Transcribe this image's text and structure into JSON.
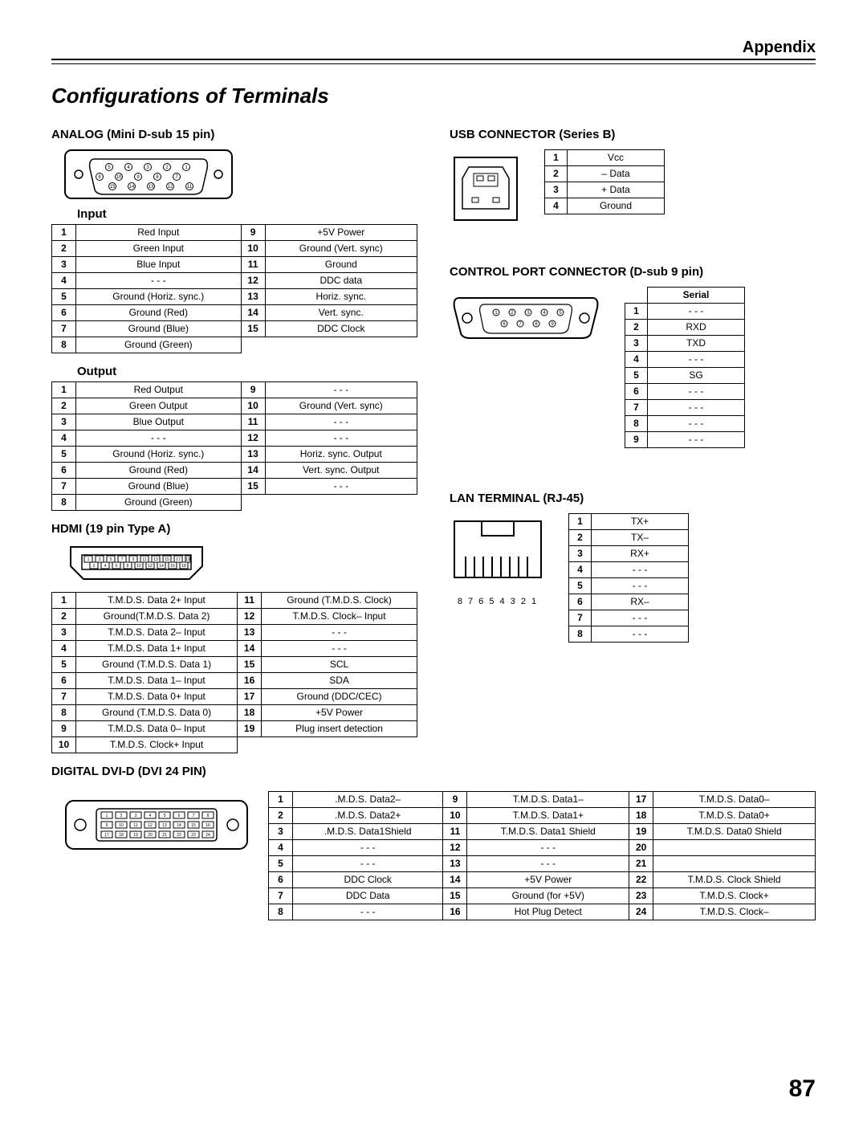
{
  "header": {
    "appendix": "Appendix"
  },
  "title": "Configurations of Terminals",
  "page_number": "87",
  "analog": {
    "heading": "ANALOG (Mini D-sub 15 pin)",
    "input_heading": "Input",
    "output_heading": "Output",
    "input": [
      [
        "1",
        "Red Input",
        "9",
        "+5V Power"
      ],
      [
        "2",
        "Green Input",
        "10",
        "Ground (Vert. sync)"
      ],
      [
        "3",
        "Blue Input",
        "11",
        "Ground"
      ],
      [
        "4",
        "- - -",
        "12",
        "DDC data"
      ],
      [
        "5",
        "Ground (Horiz. sync.)",
        "13",
        "Horiz. sync."
      ],
      [
        "6",
        "Ground (Red)",
        "14",
        "Vert. sync."
      ],
      [
        "7",
        "Ground (Blue)",
        "15",
        "DDC Clock"
      ],
      [
        "8",
        "Ground (Green)",
        "",
        ""
      ]
    ],
    "output": [
      [
        "1",
        "Red Output",
        "9",
        "- - -"
      ],
      [
        "2",
        "Green Output",
        "10",
        "Ground (Vert. sync)"
      ],
      [
        "3",
        "Blue Output",
        "11",
        "- - -"
      ],
      [
        "4",
        "- - -",
        "12",
        "- - -"
      ],
      [
        "5",
        "Ground (Horiz. sync.)",
        "13",
        "Horiz. sync. Output"
      ],
      [
        "6",
        "Ground (Red)",
        "14",
        "Vert. sync. Output"
      ],
      [
        "7",
        "Ground (Blue)",
        "15",
        "- - -"
      ],
      [
        "8",
        "Ground (Green)",
        "",
        ""
      ]
    ]
  },
  "hdmi": {
    "heading": "HDMI (19 pin Type A)",
    "rows": [
      [
        "1",
        "T.M.D.S. Data 2+ Input",
        "11",
        "Ground (T.M.D.S. Clock)"
      ],
      [
        "2",
        "Ground(T.M.D.S. Data 2)",
        "12",
        "T.M.D.S. Clock– Input"
      ],
      [
        "3",
        "T.M.D.S. Data 2– Input",
        "13",
        "- - -"
      ],
      [
        "4",
        "T.M.D.S. Data 1+ Input",
        "14",
        "- - -"
      ],
      [
        "5",
        "Ground (T.M.D.S. Data 1)",
        "15",
        "SCL"
      ],
      [
        "6",
        "T.M.D.S. Data 1– Input",
        "16",
        "SDA"
      ],
      [
        "7",
        "T.M.D.S. Data 0+ Input",
        "17",
        "Ground (DDC/CEC)"
      ],
      [
        "8",
        "Ground (T.M.D.S. Data 0)",
        "18",
        "+5V Power"
      ],
      [
        "9",
        "T.M.D.S. Data 0– Input",
        "19",
        "Plug insert detection"
      ],
      [
        "10",
        "T.M.D.S. Clock+ Input",
        "",
        ""
      ]
    ]
  },
  "dvi": {
    "heading": "DIGITAL DVI-D (DVI 24 PIN)",
    "rows": [
      [
        "1",
        ".M.D.S. Data2–",
        "9",
        "T.M.D.S. Data1–",
        "17",
        "T.M.D.S. Data0–"
      ],
      [
        "2",
        ".M.D.S. Data2+",
        "10",
        "T.M.D.S. Data1+",
        "18",
        "T.M.D.S. Data0+"
      ],
      [
        "3",
        ".M.D.S. Data1Shield",
        "11",
        "T.M.D.S. Data1 Shield",
        "19",
        "T.M.D.S. Data0 Shield"
      ],
      [
        "4",
        "- - -",
        "12",
        "- - -",
        "20",
        ""
      ],
      [
        "5",
        "- - -",
        "13",
        "- - -",
        "21",
        ""
      ],
      [
        "6",
        "DDC Clock",
        "14",
        "+5V Power",
        "22",
        "T.M.D.S. Clock Shield"
      ],
      [
        "7",
        "DDC Data",
        "15",
        "Ground (for +5V)",
        "23",
        "T.M.D.S. Clock+"
      ],
      [
        "8",
        "- - -",
        "16",
        "Hot Plug Detect",
        "24",
        "T.M.D.S. Clock–"
      ]
    ]
  },
  "usb": {
    "heading": "USB CONNECTOR (Series B)",
    "rows": [
      [
        "1",
        "Vcc"
      ],
      [
        "2",
        "– Data"
      ],
      [
        "3",
        "+ Data"
      ],
      [
        "4",
        "Ground"
      ]
    ]
  },
  "control": {
    "heading": "CONTROL PORT CONNECTOR (D-sub 9 pin)",
    "col_header": "Serial",
    "rows": [
      [
        "1",
        "- - -"
      ],
      [
        "2",
        "RXD"
      ],
      [
        "3",
        "TXD"
      ],
      [
        "4",
        "- - -"
      ],
      [
        "5",
        "SG"
      ],
      [
        "6",
        "- - -"
      ],
      [
        "7",
        "- - -"
      ],
      [
        "8",
        "- - -"
      ],
      [
        "9",
        "- - -"
      ]
    ]
  },
  "lan": {
    "heading": "LAN TERMINAL (RJ-45)",
    "pin_label": "8 7 6 5 4 3 2 1",
    "rows": [
      [
        "1",
        "TX+"
      ],
      [
        "2",
        "TX–"
      ],
      [
        "3",
        "RX+"
      ],
      [
        "4",
        "- - -"
      ],
      [
        "5",
        "- - -"
      ],
      [
        "6",
        "RX–"
      ],
      [
        "7",
        "- - -"
      ],
      [
        "8",
        "- - -"
      ]
    ]
  }
}
